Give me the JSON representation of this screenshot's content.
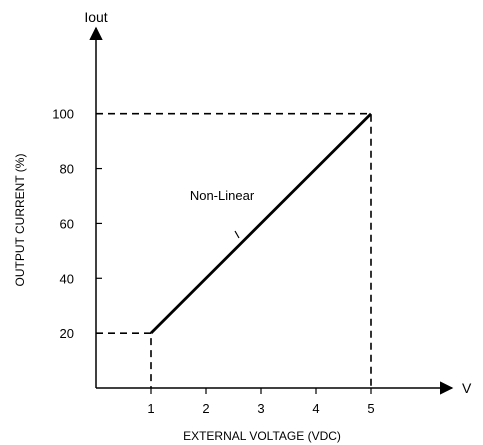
{
  "chart_data": {
    "type": "line",
    "title": "",
    "xlabel": "EXTERNAL VOLTAGE (VDC)",
    "ylabel": "OUTPUT CURRENT (%)",
    "x_axis_symbol": "V",
    "y_axis_symbol": "Iout",
    "x_ticks": [
      1,
      2,
      3,
      4,
      5
    ],
    "y_ticks": [
      20,
      40,
      60,
      80,
      100
    ],
    "xlim": [
      0,
      5.5
    ],
    "ylim": [
      0,
      125
    ],
    "grid": false,
    "series": [
      {
        "x": [
          1,
          5
        ],
        "y": [
          20,
          100
        ]
      }
    ],
    "reference_lines": [
      {
        "points": [
          [
            0,
            20
          ],
          [
            1,
            20
          ],
          [
            1,
            0
          ]
        ]
      },
      {
        "points": [
          [
            0,
            100
          ],
          [
            5,
            100
          ],
          [
            5,
            0
          ]
        ]
      }
    ],
    "annotation": {
      "text": "Non-Linear",
      "x": 3,
      "y": 60
    }
  }
}
